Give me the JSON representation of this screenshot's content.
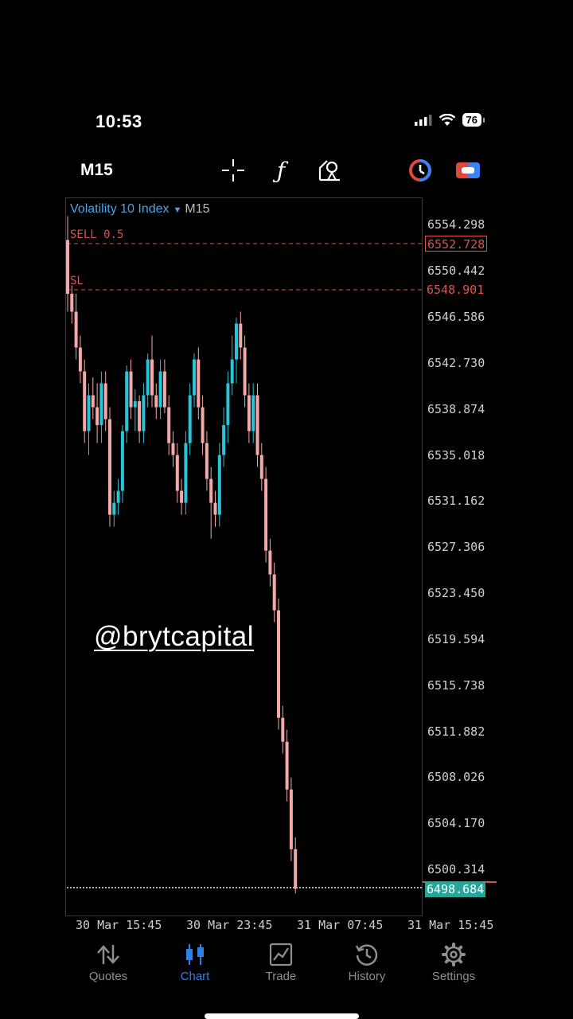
{
  "status": {
    "time": "10:53",
    "battery": "76"
  },
  "toolbar": {
    "timeframe": "M15",
    "icons": [
      "crosshair-icon",
      "function-icon",
      "objects-icon",
      "one-click-trading-icon",
      "account-icon"
    ]
  },
  "symbol": {
    "name": "Volatility 10 Index",
    "timeframe": "M15"
  },
  "price_axis": [
    "6554.298",
    "6550.442",
    "6546.586",
    "6542.730",
    "6538.874",
    "6535.018",
    "6531.162",
    "6527.306",
    "6523.450",
    "6519.594",
    "6515.738",
    "6511.882",
    "6508.026",
    "6504.170",
    "6500.314"
  ],
  "order_lines": {
    "sell": {
      "label": "SELL 0.5",
      "price": "6552.728"
    },
    "sl": {
      "label": "SL",
      "price": "6548.901"
    }
  },
  "current_price": "6498.684",
  "time_axis": [
    "30 Mar 15:45",
    "30 Mar 23:45",
    "31 Mar 07:45",
    "31 Mar 15:45"
  ],
  "watermark": "@brytcapital",
  "tabs": [
    {
      "label": "Quotes",
      "icon": "quotes-icon"
    },
    {
      "label": "Chart",
      "icon": "chart-icon",
      "active": true
    },
    {
      "label": "Trade",
      "icon": "trade-icon"
    },
    {
      "label": "History",
      "icon": "history-icon"
    },
    {
      "label": "Settings",
      "icon": "settings-icon"
    }
  ],
  "colors": {
    "bull": "#26c6da",
    "bear": "#f4a8a8",
    "accent": "#2f7fe6",
    "order_line": "#d9534f"
  },
  "chart_data": {
    "type": "candlestick",
    "symbol": "Volatility 10 Index",
    "timeframe": "M15",
    "ylim": [
      6497.0,
      6556.0
    ],
    "candles": [
      {
        "o": 6553.0,
        "h": 6555.0,
        "l": 6547.0,
        "c": 6548.5
      },
      {
        "o": 6548.5,
        "h": 6549.2,
        "l": 6546.0,
        "c": 6547.0
      },
      {
        "o": 6547.0,
        "h": 6548.5,
        "l": 6543.0,
        "c": 6544.0
      },
      {
        "o": 6544.0,
        "h": 6545.0,
        "l": 6541.0,
        "c": 6542.0
      },
      {
        "o": 6542.0,
        "h": 6543.0,
        "l": 6536.0,
        "c": 6537.0
      },
      {
        "o": 6537.0,
        "h": 6541.0,
        "l": 6535.0,
        "c": 6540.0
      },
      {
        "o": 6540.0,
        "h": 6541.5,
        "l": 6538.0,
        "c": 6539.0
      },
      {
        "o": 6539.0,
        "h": 6541.0,
        "l": 6536.0,
        "c": 6537.5
      },
      {
        "o": 6537.5,
        "h": 6542.0,
        "l": 6536.0,
        "c": 6541.0
      },
      {
        "o": 6541.0,
        "h": 6542.0,
        "l": 6537.0,
        "c": 6538.0
      },
      {
        "o": 6538.0,
        "h": 6539.0,
        "l": 6529.0,
        "c": 6530.0
      },
      {
        "o": 6530.0,
        "h": 6532.0,
        "l": 6529.0,
        "c": 6531.0
      },
      {
        "o": 6531.0,
        "h": 6533.0,
        "l": 6530.0,
        "c": 6532.0
      },
      {
        "o": 6532.0,
        "h": 6537.5,
        "l": 6531.0,
        "c": 6537.0
      },
      {
        "o": 6537.0,
        "h": 6542.5,
        "l": 6536.0,
        "c": 6542.0
      },
      {
        "o": 6542.0,
        "h": 6543.0,
        "l": 6538.0,
        "c": 6539.0
      },
      {
        "o": 6539.0,
        "h": 6540.5,
        "l": 6537.0,
        "c": 6539.5
      },
      {
        "o": 6539.5,
        "h": 6540.0,
        "l": 6536.0,
        "c": 6537.0
      },
      {
        "o": 6537.0,
        "h": 6541.0,
        "l": 6536.0,
        "c": 6540.0
      },
      {
        "o": 6540.0,
        "h": 6543.5,
        "l": 6539.0,
        "c": 6543.0
      },
      {
        "o": 6543.0,
        "h": 6545.0,
        "l": 6539.0,
        "c": 6540.0
      },
      {
        "o": 6540.0,
        "h": 6541.0,
        "l": 6538.0,
        "c": 6539.0
      },
      {
        "o": 6539.0,
        "h": 6543.0,
        "l": 6538.0,
        "c": 6542.0
      },
      {
        "o": 6542.0,
        "h": 6543.0,
        "l": 6538.5,
        "c": 6539.0
      },
      {
        "o": 6539.0,
        "h": 6540.0,
        "l": 6535.0,
        "c": 6536.0
      },
      {
        "o": 6536.0,
        "h": 6537.0,
        "l": 6534.0,
        "c": 6535.0
      },
      {
        "o": 6535.0,
        "h": 6536.0,
        "l": 6531.0,
        "c": 6532.0
      },
      {
        "o": 6532.0,
        "h": 6533.0,
        "l": 6530.0,
        "c": 6531.0
      },
      {
        "o": 6531.0,
        "h": 6537.0,
        "l": 6530.0,
        "c": 6536.0
      },
      {
        "o": 6536.0,
        "h": 6541.0,
        "l": 6535.0,
        "c": 6540.0
      },
      {
        "o": 6540.0,
        "h": 6543.5,
        "l": 6539.0,
        "c": 6543.0
      },
      {
        "o": 6543.0,
        "h": 6544.0,
        "l": 6538.0,
        "c": 6539.0
      },
      {
        "o": 6539.0,
        "h": 6540.0,
        "l": 6535.0,
        "c": 6536.0
      },
      {
        "o": 6536.0,
        "h": 6537.0,
        "l": 6532.0,
        "c": 6533.0
      },
      {
        "o": 6533.0,
        "h": 6534.0,
        "l": 6528.0,
        "c": 6531.0
      },
      {
        "o": 6531.0,
        "h": 6532.0,
        "l": 6529.0,
        "c": 6530.0
      },
      {
        "o": 6530.0,
        "h": 6536.0,
        "l": 6529.0,
        "c": 6535.0
      },
      {
        "o": 6535.0,
        "h": 6539.0,
        "l": 6534.0,
        "c": 6537.5
      },
      {
        "o": 6537.5,
        "h": 6542.0,
        "l": 6536.0,
        "c": 6541.0
      },
      {
        "o": 6541.0,
        "h": 6545.0,
        "l": 6540.0,
        "c": 6543.0
      },
      {
        "o": 6543.0,
        "h": 6546.5,
        "l": 6541.0,
        "c": 6546.0
      },
      {
        "o": 6546.0,
        "h": 6547.0,
        "l": 6543.0,
        "c": 6544.0
      },
      {
        "o": 6544.0,
        "h": 6545.0,
        "l": 6539.0,
        "c": 6540.0
      },
      {
        "o": 6540.0,
        "h": 6541.0,
        "l": 6536.0,
        "c": 6537.0
      },
      {
        "o": 6537.0,
        "h": 6541.0,
        "l": 6536.0,
        "c": 6540.0
      },
      {
        "o": 6540.0,
        "h": 6541.0,
        "l": 6534.0,
        "c": 6535.0
      },
      {
        "o": 6535.0,
        "h": 6536.0,
        "l": 6532.0,
        "c": 6533.0
      },
      {
        "o": 6533.0,
        "h": 6534.0,
        "l": 6526.0,
        "c": 6527.0
      },
      {
        "o": 6527.0,
        "h": 6528.0,
        "l": 6524.0,
        "c": 6525.0
      },
      {
        "o": 6525.0,
        "h": 6526.0,
        "l": 6521.0,
        "c": 6522.0
      },
      {
        "o": 6522.0,
        "h": 6523.0,
        "l": 6512.0,
        "c": 6513.0
      },
      {
        "o": 6513.0,
        "h": 6514.0,
        "l": 6510.0,
        "c": 6511.0
      },
      {
        "o": 6511.0,
        "h": 6512.0,
        "l": 6506.0,
        "c": 6507.0
      },
      {
        "o": 6507.0,
        "h": 6508.0,
        "l": 6501.0,
        "c": 6502.0
      },
      {
        "o": 6502.0,
        "h": 6503.0,
        "l": 6498.3,
        "c": 6498.684
      }
    ]
  }
}
